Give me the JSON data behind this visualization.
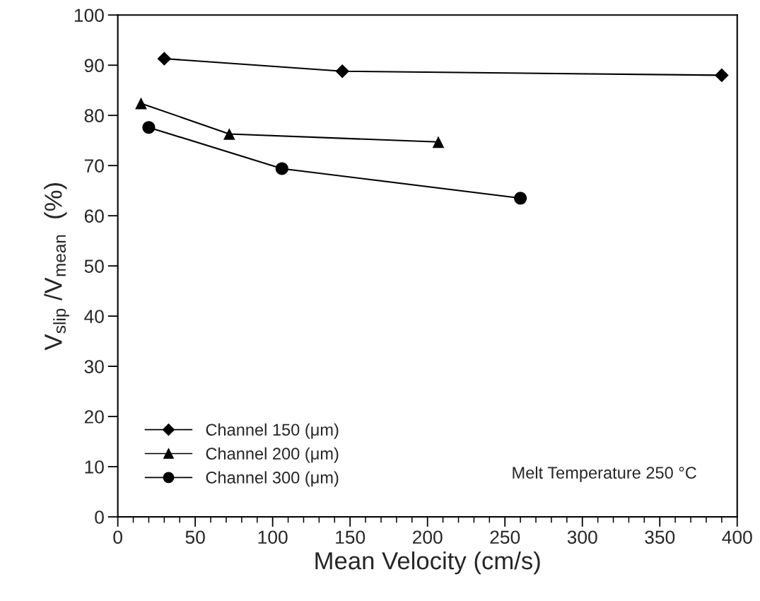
{
  "chart_data": {
    "type": "line",
    "xlabel": "Mean Velocity (cm/s)",
    "ylabel": "V$_{slip}$ /V$_{mean}$  (%)",
    "xlim": [
      0,
      400
    ],
    "xticks": [
      0,
      50,
      100,
      150,
      200,
      250,
      300,
      350,
      400
    ],
    "ylim": [
      0,
      100
    ],
    "yticks": [
      0,
      10,
      20,
      30,
      40,
      50,
      60,
      70,
      80,
      90,
      100
    ],
    "grid": false,
    "legend": "bottom left",
    "line_style": "solid",
    "annotations": [
      "Melt Temperature 250 °C"
    ],
    "series": [
      {
        "name": "Channel 150 (μm)",
        "color": "#000000",
        "marker": "diamond",
        "x": [
          30,
          145,
          390
        ],
        "values": [
          91.3,
          88.8,
          88.0
        ]
      },
      {
        "name": "Channel 200 (μm)",
        "color": "#000000",
        "marker": "triangle",
        "x": [
          15,
          72,
          207
        ],
        "values": [
          82.4,
          76.3,
          74.7
        ]
      },
      {
        "name": "Channel 300 (μm)",
        "color": "#000000",
        "marker": "circle",
        "x": [
          20,
          106,
          260
        ],
        "values": [
          77.6,
          69.4,
          63.5
        ]
      }
    ]
  }
}
